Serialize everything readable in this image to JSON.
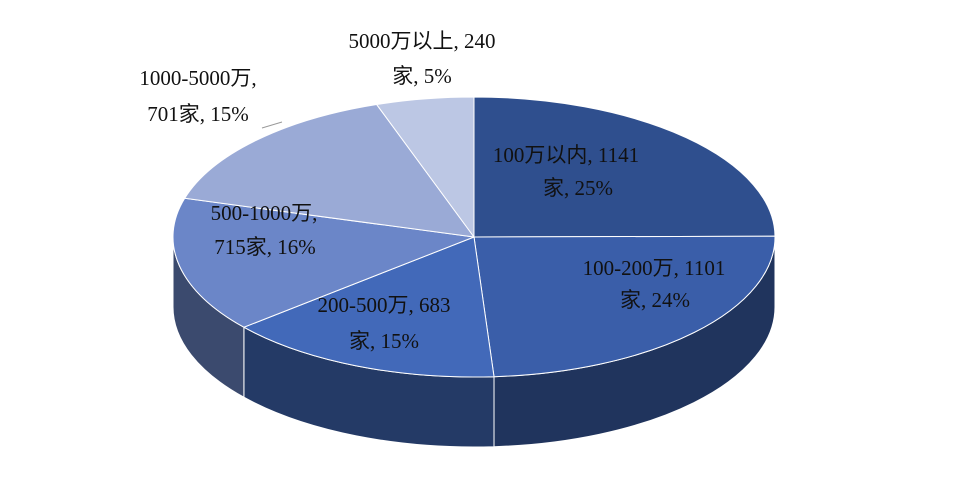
{
  "chart_data": {
    "type": "pie3d",
    "categories": [
      "100万以内",
      "100-200万",
      "200-500万",
      "500-1000万",
      "1000-5000万",
      "5000万以上"
    ],
    "values": [
      1141,
      1101,
      683,
      715,
      701,
      240
    ],
    "value_labels": [
      [
        "100万以内, 1141",
        "家, 25%"
      ],
      [
        "100-200万, 1101",
        "家, 24%"
      ],
      [
        "200-500万, 683",
        "家, 15%"
      ],
      [
        "500-1000万,",
        "715家, 16%"
      ],
      [
        "1000-5000万,",
        "701家, 15%"
      ],
      [
        "5000万以上, 240",
        "家, 5%"
      ]
    ],
    "colors": [
      "#2f4f8e",
      "#3a5ea9",
      "#4269b9",
      "#6b86c8",
      "#9aaad6",
      "#bcc7e4"
    ]
  }
}
